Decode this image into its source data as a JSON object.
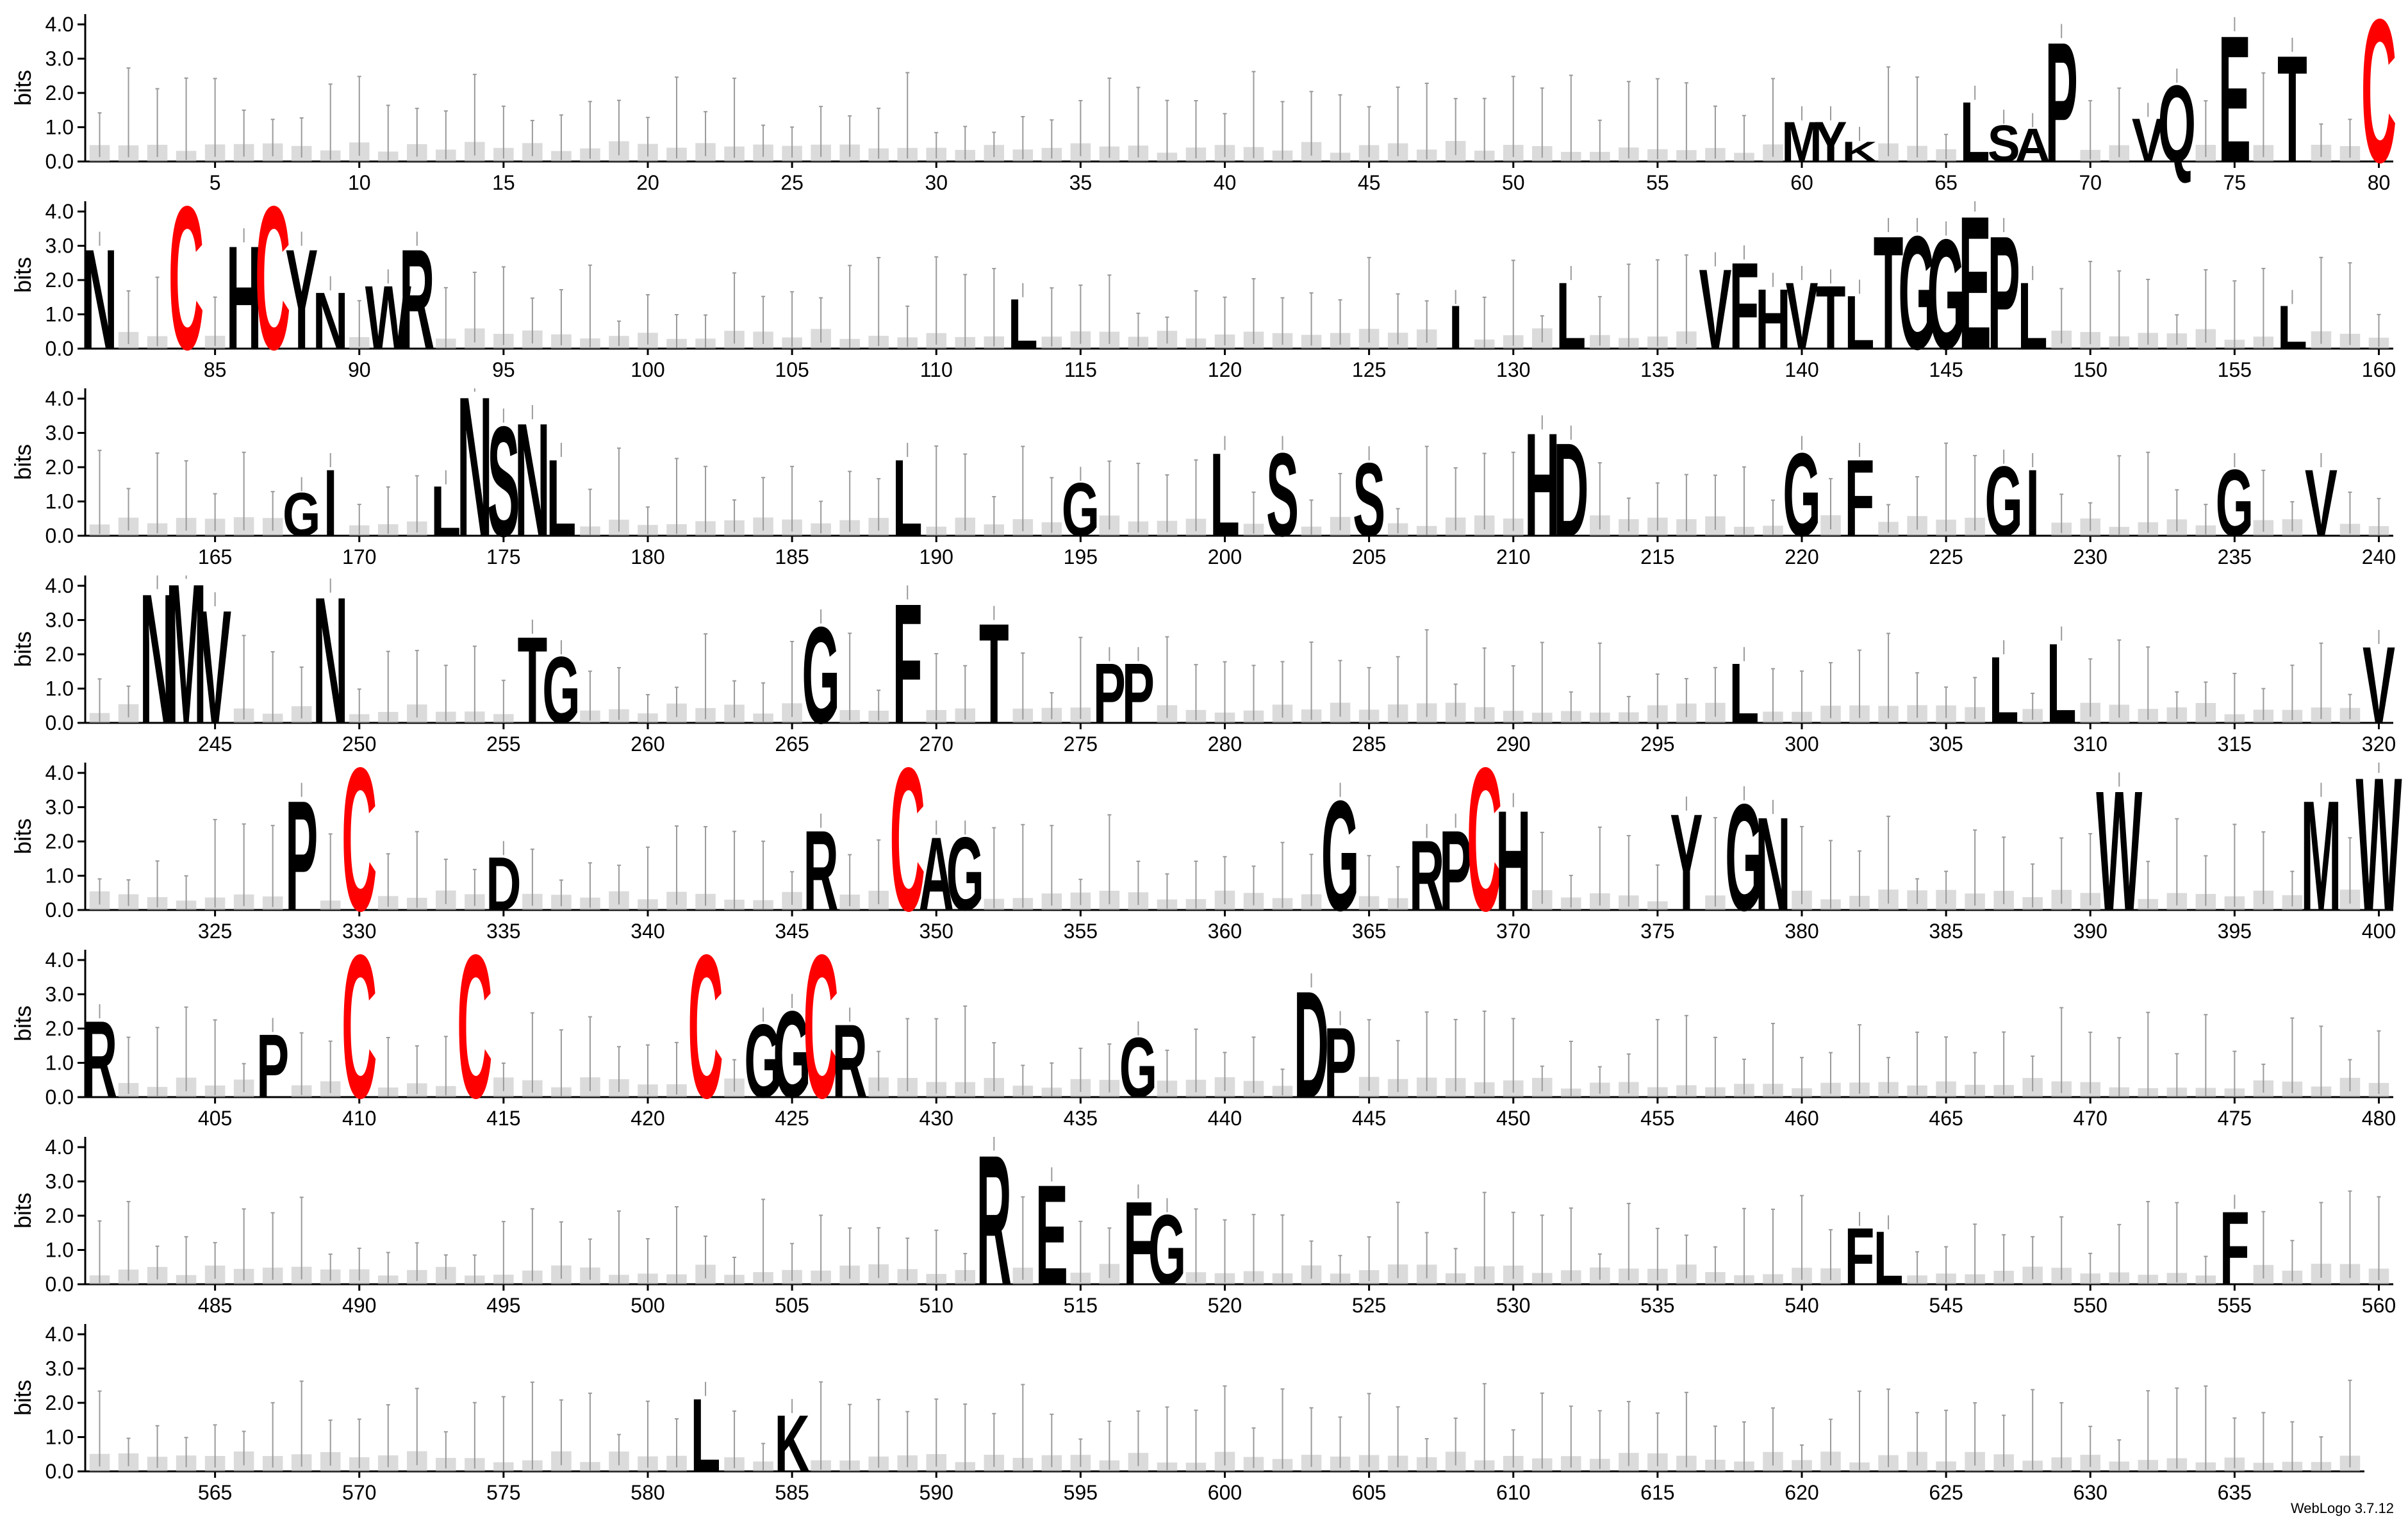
{
  "credit": "WebLogo 3.7.12",
  "chart_data": {
    "type": "sequence-logo",
    "ylabel": "bits",
    "ylim": [
      0,
      4.3
    ],
    "yticks": [
      "0.0",
      "1.0",
      "2.0",
      "3.0",
      "4.0"
    ],
    "positions_per_row": 80,
    "total_positions": 639,
    "x_tick_step": 5,
    "colors": {
      "cysteine": "#ff0000",
      "other": "#000000",
      "error_bar": "#9a9a9a",
      "axis": "#000000"
    },
    "stacks": [
      {
        "pos": 60,
        "letters": [
          {
            "aa": "M",
            "bits": 1.2
          }
        ]
      },
      {
        "pos": 61,
        "letters": [
          {
            "aa": "Y",
            "bits": 1.2
          }
        ]
      },
      {
        "pos": 62,
        "letters": [
          {
            "aa": "K",
            "bits": 0.6
          }
        ]
      },
      {
        "pos": 66,
        "letters": [
          {
            "aa": "L",
            "bits": 1.8
          }
        ]
      },
      {
        "pos": 67,
        "letters": [
          {
            "aa": "S",
            "bits": 1.1
          }
        ]
      },
      {
        "pos": 68,
        "letters": [
          {
            "aa": "A",
            "bits": 1.0
          }
        ]
      },
      {
        "pos": 69,
        "letters": [
          {
            "aa": "P",
            "bits": 3.6
          }
        ]
      },
      {
        "pos": 72,
        "letters": [
          {
            "aa": "V",
            "bits": 1.3
          }
        ]
      },
      {
        "pos": 73,
        "letters": [
          {
            "aa": "Q",
            "bits": 2.3
          }
        ]
      },
      {
        "pos": 75,
        "letters": [
          {
            "aa": "E",
            "bits": 3.8
          }
        ]
      },
      {
        "pos": 77,
        "letters": [
          {
            "aa": "T",
            "bits": 3.2
          }
        ]
      },
      {
        "pos": 80,
        "letters": [
          {
            "aa": "C",
            "bits": 4.3
          }
        ]
      },
      {
        "pos": 81,
        "letters": [
          {
            "aa": "N",
            "bits": 3.0
          }
        ]
      },
      {
        "pos": 84,
        "letters": [
          {
            "aa": "C",
            "bits": 4.3
          }
        ]
      },
      {
        "pos": 86,
        "letters": [
          {
            "aa": "H",
            "bits": 3.1
          }
        ]
      },
      {
        "pos": 87,
        "letters": [
          {
            "aa": "C",
            "bits": 4.3
          }
        ]
      },
      {
        "pos": 88,
        "letters": [
          {
            "aa": "Y",
            "bits": 3.0
          }
        ]
      },
      {
        "pos": 89,
        "letters": [
          {
            "aa": "N",
            "bits": 1.7
          }
        ]
      },
      {
        "pos": 91,
        "letters": [
          {
            "aa": "W",
            "bits": 1.9
          }
        ]
      },
      {
        "pos": 92,
        "letters": [
          {
            "aa": "R",
            "bits": 3.0
          }
        ]
      },
      {
        "pos": 113,
        "letters": [
          {
            "aa": "L",
            "bits": 1.5
          }
        ]
      },
      {
        "pos": 128,
        "letters": [
          {
            "aa": "I",
            "bits": 1.3
          }
        ]
      },
      {
        "pos": 132,
        "letters": [
          {
            "aa": "L",
            "bits": 2.0
          }
        ]
      },
      {
        "pos": 137,
        "letters": [
          {
            "aa": "V",
            "bits": 2.4
          }
        ]
      },
      {
        "pos": 138,
        "letters": [
          {
            "aa": "F",
            "bits": 2.6
          }
        ]
      },
      {
        "pos": 139,
        "letters": [
          {
            "aa": "H",
            "bits": 1.8
          }
        ]
      },
      {
        "pos": 140,
        "letters": [
          {
            "aa": "V",
            "bits": 2.0
          }
        ]
      },
      {
        "pos": 141,
        "letters": [
          {
            "aa": "T",
            "bits": 1.9
          }
        ]
      },
      {
        "pos": 142,
        "letters": [
          {
            "aa": "L",
            "bits": 1.6
          }
        ]
      },
      {
        "pos": 143,
        "letters": [
          {
            "aa": "T",
            "bits": 3.4
          }
        ]
      },
      {
        "pos": 144,
        "letters": [
          {
            "aa": "G",
            "bits": 3.4
          }
        ]
      },
      {
        "pos": 145,
        "letters": [
          {
            "aa": "G",
            "bits": 3.3
          }
        ]
      },
      {
        "pos": 146,
        "letters": [
          {
            "aa": "E",
            "bits": 4.0
          }
        ]
      },
      {
        "pos": 147,
        "letters": [
          {
            "aa": "P",
            "bits": 3.4
          }
        ]
      },
      {
        "pos": 148,
        "letters": [
          {
            "aa": "L",
            "bits": 2.0
          }
        ]
      },
      {
        "pos": 157,
        "letters": [
          {
            "aa": "L",
            "bits": 1.3
          }
        ]
      },
      {
        "pos": 168,
        "letters": [
          {
            "aa": "G",
            "bits": 1.3
          }
        ]
      },
      {
        "pos": 169,
        "letters": [
          {
            "aa": "I",
            "bits": 2.0
          }
        ]
      },
      {
        "pos": 173,
        "letters": [
          {
            "aa": "L",
            "bits": 1.5
          }
        ]
      },
      {
        "pos": 174,
        "letters": [
          {
            "aa": "N",
            "bits": 4.2
          }
        ]
      },
      {
        "pos": 175,
        "letters": [
          {
            "aa": "S",
            "bits": 3.3
          }
        ]
      },
      {
        "pos": 176,
        "letters": [
          {
            "aa": "N",
            "bits": 3.4
          }
        ]
      },
      {
        "pos": 177,
        "letters": [
          {
            "aa": "L",
            "bits": 2.3
          }
        ]
      },
      {
        "pos": 189,
        "letters": [
          {
            "aa": "L",
            "bits": 2.3
          }
        ]
      },
      {
        "pos": 195,
        "letters": [
          {
            "aa": "G",
            "bits": 1.6
          }
        ]
      },
      {
        "pos": 200,
        "letters": [
          {
            "aa": "L",
            "bits": 2.5
          }
        ]
      },
      {
        "pos": 202,
        "letters": [
          {
            "aa": "S",
            "bits": 2.5
          }
        ]
      },
      {
        "pos": 205,
        "letters": [
          {
            "aa": "S",
            "bits": 2.2
          }
        ]
      },
      {
        "pos": 211,
        "letters": [
          {
            "aa": "H",
            "bits": 3.1
          }
        ]
      },
      {
        "pos": 212,
        "letters": [
          {
            "aa": "D",
            "bits": 2.8
          }
        ]
      },
      {
        "pos": 220,
        "letters": [
          {
            "aa": "G",
            "bits": 2.5
          }
        ]
      },
      {
        "pos": 222,
        "letters": [
          {
            "aa": "F",
            "bits": 2.3
          }
        ]
      },
      {
        "pos": 227,
        "letters": [
          {
            "aa": "G",
            "bits": 2.1
          }
        ]
      },
      {
        "pos": 228,
        "letters": [
          {
            "aa": "I",
            "bits": 2.0
          }
        ]
      },
      {
        "pos": 235,
        "letters": [
          {
            "aa": "G",
            "bits": 2.0
          }
        ]
      },
      {
        "pos": 238,
        "letters": [
          {
            "aa": "V",
            "bits": 2.0
          }
        ]
      },
      {
        "pos": 243,
        "letters": [
          {
            "aa": "N",
            "bits": 3.9
          }
        ]
      },
      {
        "pos": 244,
        "letters": [
          {
            "aa": "M",
            "bits": 4.2
          }
        ]
      },
      {
        "pos": 245,
        "letters": [
          {
            "aa": "V",
            "bits": 3.4
          }
        ]
      },
      {
        "pos": 249,
        "letters": [
          {
            "aa": "N",
            "bits": 3.8
          }
        ]
      },
      {
        "pos": 256,
        "letters": [
          {
            "aa": "T",
            "bits": 2.6
          }
        ]
      },
      {
        "pos": 257,
        "letters": [
          {
            "aa": "G",
            "bits": 2.0
          }
        ]
      },
      {
        "pos": 266,
        "letters": [
          {
            "aa": "G",
            "bits": 2.9
          }
        ]
      },
      {
        "pos": 269,
        "letters": [
          {
            "aa": "F",
            "bits": 3.6
          }
        ]
      },
      {
        "pos": 272,
        "letters": [
          {
            "aa": "T",
            "bits": 3.0
          }
        ]
      },
      {
        "pos": 276,
        "letters": [
          {
            "aa": "P",
            "bits": 1.8
          }
        ]
      },
      {
        "pos": 277,
        "letters": [
          {
            "aa": "P",
            "bits": 1.8
          }
        ]
      },
      {
        "pos": 298,
        "letters": [
          {
            "aa": "L",
            "bits": 1.8
          }
        ]
      },
      {
        "pos": 307,
        "letters": [
          {
            "aa": "L",
            "bits": 2.0
          }
        ]
      },
      {
        "pos": 309,
        "letters": [
          {
            "aa": "L",
            "bits": 2.4
          }
        ]
      },
      {
        "pos": 320,
        "letters": [
          {
            "aa": "V",
            "bits": 2.3
          }
        ]
      },
      {
        "pos": 328,
        "letters": [
          {
            "aa": "P",
            "bits": 3.3
          }
        ]
      },
      {
        "pos": 330,
        "letters": [
          {
            "aa": "C",
            "bits": 4.3
          }
        ]
      },
      {
        "pos": 335,
        "letters": [
          {
            "aa": "D",
            "bits": 1.6
          }
        ]
      },
      {
        "pos": 346,
        "letters": [
          {
            "aa": "R",
            "bits": 2.4
          }
        ]
      },
      {
        "pos": 349,
        "letters": [
          {
            "aa": "C",
            "bits": 4.3
          }
        ]
      },
      {
        "pos": 350,
        "letters": [
          {
            "aa": "A",
            "bits": 2.2
          }
        ]
      },
      {
        "pos": 351,
        "letters": [
          {
            "aa": "G",
            "bits": 2.2
          }
        ]
      },
      {
        "pos": 364,
        "letters": [
          {
            "aa": "G",
            "bits": 3.3
          }
        ]
      },
      {
        "pos": 367,
        "letters": [
          {
            "aa": "R",
            "bits": 2.1
          }
        ]
      },
      {
        "pos": 368,
        "letters": [
          {
            "aa": "P",
            "bits": 2.4
          }
        ]
      },
      {
        "pos": 369,
        "letters": [
          {
            "aa": "C",
            "bits": 4.3
          }
        ]
      },
      {
        "pos": 370,
        "letters": [
          {
            "aa": "H",
            "bits": 3.0
          }
        ]
      },
      {
        "pos": 376,
        "letters": [
          {
            "aa": "Y",
            "bits": 2.9
          }
        ]
      },
      {
        "pos": 378,
        "letters": [
          {
            "aa": "G",
            "bits": 3.2
          }
        ]
      },
      {
        "pos": 379,
        "letters": [
          {
            "aa": "N",
            "bits": 2.8
          }
        ]
      },
      {
        "pos": 391,
        "letters": [
          {
            "aa": "W",
            "bits": 3.6
          }
        ]
      },
      {
        "pos": 398,
        "letters": [
          {
            "aa": "M",
            "bits": 3.3
          }
        ]
      },
      {
        "pos": 400,
        "letters": [
          {
            "aa": "W",
            "bits": 4.0
          }
        ]
      },
      {
        "pos": 401,
        "letters": [
          {
            "aa": "R",
            "bits": 2.3
          }
        ]
      },
      {
        "pos": 407,
        "letters": [
          {
            "aa": "P",
            "bits": 1.9
          }
        ]
      },
      {
        "pos": 410,
        "letters": [
          {
            "aa": "C",
            "bits": 4.3
          }
        ]
      },
      {
        "pos": 414,
        "letters": [
          {
            "aa": "C",
            "bits": 4.3
          }
        ]
      },
      {
        "pos": 422,
        "letters": [
          {
            "aa": "C",
            "bits": 4.3
          }
        ]
      },
      {
        "pos": 424,
        "letters": [
          {
            "aa": "G",
            "bits": 2.2
          }
        ]
      },
      {
        "pos": 425,
        "letters": [
          {
            "aa": "G",
            "bits": 2.6
          }
        ]
      },
      {
        "pos": 426,
        "letters": [
          {
            "aa": "C",
            "bits": 4.3
          }
        ]
      },
      {
        "pos": 427,
        "letters": [
          {
            "aa": "R",
            "bits": 2.2
          }
        ]
      },
      {
        "pos": 437,
        "letters": [
          {
            "aa": "G",
            "bits": 1.8
          }
        ]
      },
      {
        "pos": 443,
        "letters": [
          {
            "aa": "D",
            "bits": 3.2
          }
        ]
      },
      {
        "pos": 444,
        "letters": [
          {
            "aa": "P",
            "bits": 2.1
          }
        ]
      },
      {
        "pos": 512,
        "letters": [
          {
            "aa": "R",
            "bits": 3.9
          }
        ]
      },
      {
        "pos": 514,
        "letters": [
          {
            "aa": "E",
            "bits": 3.0
          }
        ]
      },
      {
        "pos": 517,
        "letters": [
          {
            "aa": "F",
            "bits": 2.5
          }
        ]
      },
      {
        "pos": 518,
        "letters": [
          {
            "aa": "G",
            "bits": 2.1
          }
        ]
      },
      {
        "pos": 542,
        "letters": [
          {
            "aa": "F",
            "bits": 1.7
          }
        ]
      },
      {
        "pos": 543,
        "letters": [
          {
            "aa": "L",
            "bits": 1.6
          }
        ]
      },
      {
        "pos": 555,
        "letters": [
          {
            "aa": "F",
            "bits": 2.2
          }
        ]
      },
      {
        "pos": 582,
        "letters": [
          {
            "aa": "L",
            "bits": 2.2
          }
        ]
      },
      {
        "pos": 585,
        "letters": [
          {
            "aa": "K",
            "bits": 1.7
          }
        ]
      }
    ]
  }
}
